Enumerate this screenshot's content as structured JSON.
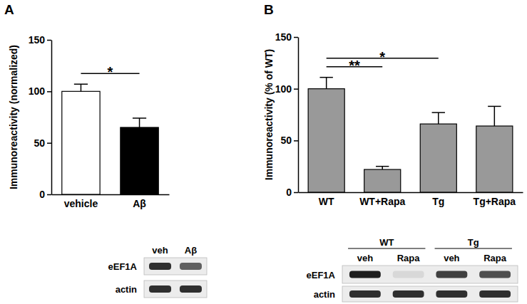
{
  "chart_data": [
    {
      "type": "bar",
      "panel": "A",
      "y_label": "Immunoreactivity (normalized)",
      "categories": [
        "vehicle",
        "Aβ"
      ],
      "values": [
        100,
        65
      ],
      "errors": [
        7,
        9
      ],
      "colors": [
        "#ffffff",
        "#000000"
      ],
      "ylim": [
        0,
        150
      ],
      "yticks": [
        0,
        50,
        100,
        150
      ],
      "significance": [
        {
          "from": 0,
          "to": 1,
          "label": "*"
        }
      ],
      "blot": {
        "lane_labels": [
          "veh",
          "Aβ"
        ],
        "row_labels": [
          "eEF1A",
          "actin"
        ],
        "band_intensity": [
          [
            0.85,
            0.7
          ],
          [
            0.85,
            0.85
          ]
        ]
      }
    },
    {
      "type": "bar",
      "panel": "B",
      "y_label": "Immunoreactivity (% of WT)",
      "categories": [
        "WT",
        "WT+Rapa",
        "Tg",
        "Tg+Rapa"
      ],
      "values": [
        100,
        22,
        66,
        64
      ],
      "errors": [
        11,
        3,
        11,
        19
      ],
      "color": "#999999",
      "ylim": [
        0,
        150
      ],
      "yticks": [
        0,
        50,
        100,
        150
      ],
      "significance": [
        {
          "from": 0,
          "to": 1,
          "label": "**"
        },
        {
          "from": 0,
          "to": 2,
          "label": "*"
        }
      ],
      "blot": {
        "groups": [
          {
            "label": "WT",
            "lanes": [
              0,
              1
            ]
          },
          {
            "label": "Tg",
            "lanes": [
              2,
              3
            ]
          }
        ],
        "lane_labels": [
          "veh",
          "Rapa",
          "veh",
          "Rapa"
        ],
        "row_labels": [
          "eEF1A",
          "actin"
        ],
        "band_intensity": [
          [
            0.9,
            0.25,
            0.8,
            0.75
          ],
          [
            0.85,
            0.85,
            0.85,
            0.85
          ]
        ]
      }
    }
  ]
}
